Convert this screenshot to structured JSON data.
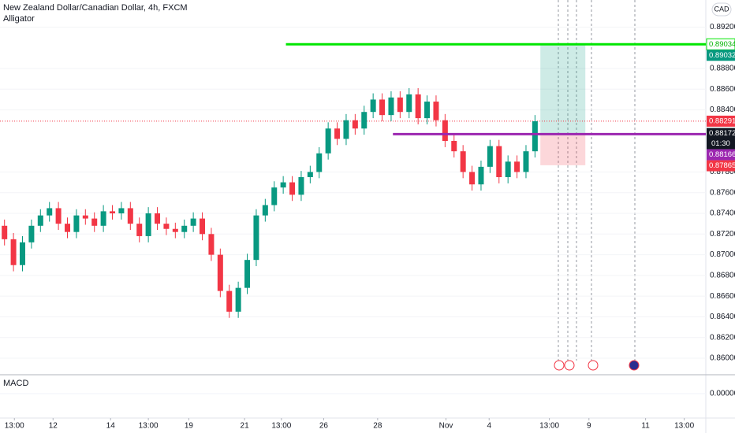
{
  "chart_data": {
    "type": "candlestick",
    "title": "New Zealand Dollar/Canadian Dollar, 4h, FXCM",
    "indicator": "Alligator",
    "currency": "CAD",
    "up_color": "#089981",
    "down_color": "#f23645",
    "xlim": [
      0,
      78.5
    ],
    "ylim": [
      0.85848,
      0.89462
    ],
    "xticks": [
      {
        "value": 1.6,
        "label": "13:00"
      },
      {
        "value": 5.9,
        "label": "12"
      },
      {
        "value": 12.3,
        "label": "14"
      },
      {
        "value": 16.5,
        "label": "13:00"
      },
      {
        "value": 21,
        "label": "19"
      },
      {
        "value": 27.2,
        "label": "21"
      },
      {
        "value": 31.3,
        "label": "13:00"
      },
      {
        "value": 36,
        "label": "26"
      },
      {
        "value": 42,
        "label": "28"
      },
      {
        "value": 49.6,
        "label": "Nov"
      },
      {
        "value": 54.4,
        "label": "4"
      },
      {
        "value": 61.1,
        "label": "13:00"
      },
      {
        "value": 65.5,
        "label": "9"
      },
      {
        "value": 71.8,
        "label": "11"
      },
      {
        "value": 76.1,
        "label": "13:00"
      }
    ],
    "yticks": [
      {
        "value": 0.892,
        "label": "0.89200"
      },
      {
        "value": 0.888,
        "label": "0.88800"
      },
      {
        "value": 0.886,
        "label": "0.88600"
      },
      {
        "value": 0.884,
        "label": "0.88400"
      },
      {
        "value": 0.878,
        "label": "0.87800"
      },
      {
        "value": 0.876,
        "label": "0.87600"
      },
      {
        "value": 0.874,
        "label": "0.87400"
      },
      {
        "value": 0.872,
        "label": "0.87200"
      },
      {
        "value": 0.87,
        "label": "0.87000"
      },
      {
        "value": 0.868,
        "label": "0.86800"
      },
      {
        "value": 0.866,
        "label": "0.86600"
      },
      {
        "value": 0.864,
        "label": "0.86400"
      },
      {
        "value": 0.862,
        "label": "0.86200"
      },
      {
        "value": 0.86,
        "label": "0.86000"
      }
    ],
    "open": [
      0.8728,
      0.8715,
      0.869,
      0.8712,
      0.8728,
      0.8738,
      0.8745,
      0.873,
      0.8722,
      0.8738,
      0.8735,
      0.8728,
      0.8742,
      0.874,
      0.8745,
      0.873,
      0.8718,
      0.874,
      0.873,
      0.8725,
      0.8722,
      0.8728,
      0.8735,
      0.872,
      0.87,
      0.8665,
      0.8645,
      0.8668,
      0.8695,
      0.8738,
      0.8748,
      0.8765,
      0.877,
      0.8758,
      0.8775,
      0.878,
      0.8798,
      0.8822,
      0.8812,
      0.883,
      0.8822,
      0.8838,
      0.885,
      0.8835,
      0.8852,
      0.8838,
      0.8855,
      0.8832,
      0.8848,
      0.883,
      0.881,
      0.88,
      0.878,
      0.8768,
      0.8785,
      0.8805,
      0.8775,
      0.879,
      0.878,
      0.88
    ],
    "high": [
      0.8734,
      0.8721,
      0.8718,
      0.8734,
      0.8744,
      0.8751,
      0.8751,
      0.8736,
      0.8744,
      0.8744,
      0.8741,
      0.8748,
      0.8748,
      0.8751,
      0.8751,
      0.8736,
      0.8746,
      0.8746,
      0.8736,
      0.8731,
      0.8734,
      0.8741,
      0.8741,
      0.8726,
      0.8706,
      0.8671,
      0.8674,
      0.8701,
      0.8744,
      0.8754,
      0.8771,
      0.8776,
      0.8776,
      0.8781,
      0.8786,
      0.8804,
      0.8828,
      0.8828,
      0.8836,
      0.8836,
      0.8844,
      0.8856,
      0.8856,
      0.8858,
      0.8858,
      0.8861,
      0.8861,
      0.8854,
      0.8854,
      0.8836,
      0.8816,
      0.8806,
      0.8786,
      0.8791,
      0.8811,
      0.8811,
      0.8796,
      0.8796,
      0.8806,
      0.8835
    ],
    "low": [
      0.8709,
      0.8684,
      0.8684,
      0.8706,
      0.8722,
      0.8732,
      0.8724,
      0.8716,
      0.8716,
      0.8729,
      0.8722,
      0.8722,
      0.8734,
      0.8734,
      0.8724,
      0.8712,
      0.8712,
      0.8724,
      0.8719,
      0.8716,
      0.8716,
      0.8722,
      0.8714,
      0.8694,
      0.8659,
      0.8639,
      0.8639,
      0.8662,
      0.8689,
      0.8732,
      0.8742,
      0.8759,
      0.8752,
      0.8752,
      0.8769,
      0.8774,
      0.8792,
      0.8806,
      0.8806,
      0.8816,
      0.8816,
      0.8832,
      0.8829,
      0.8829,
      0.8832,
      0.8832,
      0.8826,
      0.8826,
      0.8824,
      0.8804,
      0.8794,
      0.8774,
      0.8762,
      0.8762,
      0.8779,
      0.8769,
      0.8769,
      0.8774,
      0.8774,
      0.8794
    ],
    "close": [
      0.8715,
      0.869,
      0.8712,
      0.8728,
      0.8738,
      0.8745,
      0.873,
      0.8722,
      0.8738,
      0.8735,
      0.8728,
      0.8742,
      0.874,
      0.8745,
      0.873,
      0.8718,
      0.874,
      0.873,
      0.8725,
      0.8722,
      0.8728,
      0.8735,
      0.872,
      0.87,
      0.8665,
      0.8645,
      0.8668,
      0.8695,
      0.8738,
      0.8748,
      0.8765,
      0.877,
      0.8758,
      0.8775,
      0.878,
      0.8798,
      0.8822,
      0.8812,
      0.883,
      0.8822,
      0.8838,
      0.885,
      0.8835,
      0.8852,
      0.8838,
      0.8855,
      0.8832,
      0.8848,
      0.883,
      0.881,
      0.88,
      0.878,
      0.8768,
      0.8785,
      0.8805,
      0.8775,
      0.879,
      0.878,
      0.88,
      0.8829
    ],
    "levels": [
      {
        "value": 0.89034,
        "color": "#00e600",
        "from": 31.8
      },
      {
        "value": 0.88166,
        "color": "#9c27b0",
        "from": 43.7
      }
    ],
    "position": {
      "from": 60.1,
      "to": 65.1,
      "target": 0.89032,
      "entry": 0.88172,
      "stop": 0.87865
    },
    "last_price": {
      "value": 0.88291,
      "countdown": "01:30"
    },
    "macd": {
      "title": "MACD",
      "yticks": [
        {
          "value": 0,
          "label": "0.00000"
        }
      ]
    }
  }
}
